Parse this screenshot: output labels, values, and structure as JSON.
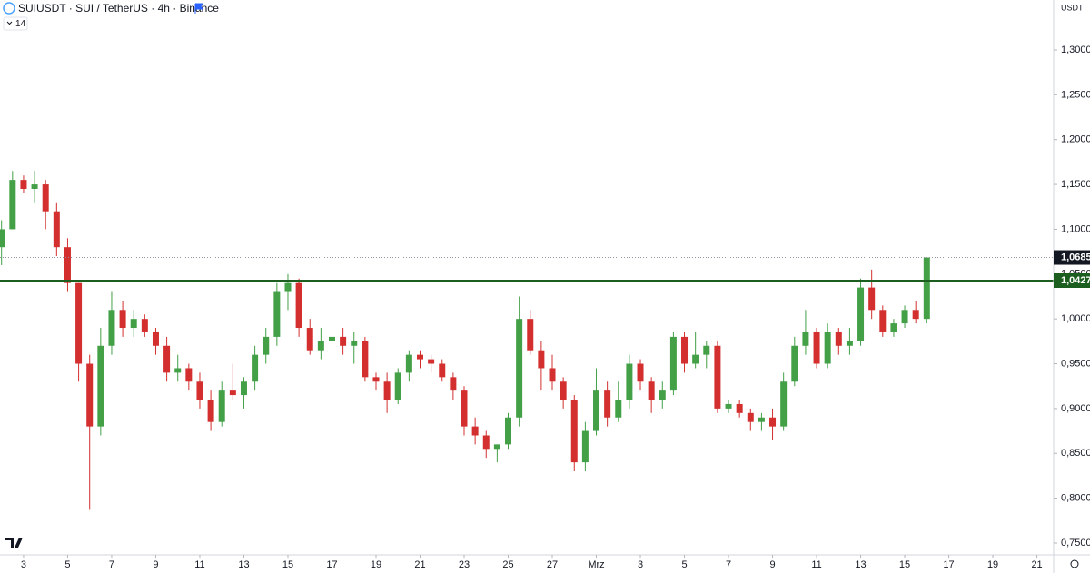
{
  "chart_data": {
    "type": "candlestick",
    "title": "SUIUSDT · SUI / TetherUS · 4h · Binance",
    "indicator": "14",
    "y_unit": "USDT",
    "up_color": "#43a047",
    "down_color": "#d32f2f",
    "x": [
      2,
      2.5,
      3,
      3.5,
      4,
      4.5,
      5,
      5.5,
      6,
      6.5,
      7,
      7.5,
      8,
      8.5,
      9,
      9.5,
      10,
      10.5,
      11,
      11.5,
      12,
      12.5,
      13,
      13.5,
      14,
      14.5,
      15,
      15.5,
      16,
      16.5,
      17,
      17.5,
      18,
      18.5,
      19,
      19.5,
      20,
      20.5,
      21,
      21.5,
      22,
      22.5,
      23,
      23.5,
      24,
      24.5,
      25,
      25.5,
      26,
      26.5,
      27,
      27.5,
      28,
      28.5,
      29,
      29.5,
      30,
      30.5,
      31,
      31.5,
      32,
      32.5,
      33,
      33.5,
      34,
      34.5,
      35,
      35.5,
      36,
      36.5,
      37,
      37.5,
      38,
      38.5,
      39,
      39.5,
      40,
      40.5,
      41,
      41.5,
      42,
      42.5,
      43,
      43.5,
      44
    ],
    "open": [
      1.08,
      1.1,
      1.155,
      1.145,
      1.15,
      1.12,
      1.08,
      1.04,
      0.95,
      0.88,
      0.97,
      1.01,
      0.99,
      1.0,
      0.985,
      0.97,
      0.94,
      0.945,
      0.93,
      0.91,
      0.885,
      0.92,
      0.915,
      0.93,
      0.96,
      0.98,
      1.03,
      1.04,
      0.99,
      0.965,
      0.975,
      0.98,
      0.97,
      0.975,
      0.935,
      0.93,
      0.91,
      0.94,
      0.96,
      0.955,
      0.95,
      0.935,
      0.92,
      0.88,
      0.87,
      0.855,
      0.86,
      0.89,
      1.0,
      0.965,
      0.945,
      0.93,
      0.91,
      0.84,
      0.875,
      0.92,
      0.89,
      0.91,
      0.95,
      0.93,
      0.91,
      0.92,
      0.98,
      0.95,
      0.96,
      0.97,
      0.9,
      0.905,
      0.895,
      0.885,
      0.89,
      0.88,
      0.93,
      0.97,
      0.985,
      0.95,
      0.985,
      0.97,
      0.975,
      1.035,
      1.01,
      0.985,
      0.995,
      1.01,
      1.0
    ],
    "high": [
      1.11,
      1.165,
      1.16,
      1.165,
      1.155,
      1.13,
      1.09,
      1.04,
      0.96,
      0.99,
      1.03,
      1.02,
      1.01,
      1.005,
      0.99,
      0.98,
      0.96,
      0.95,
      0.94,
      0.92,
      0.93,
      0.95,
      0.935,
      0.97,
      0.99,
      1.04,
      1.05,
      1.045,
      1.0,
      0.99,
      1.0,
      0.99,
      0.985,
      0.98,
      0.94,
      0.94,
      0.945,
      0.965,
      0.965,
      0.96,
      0.955,
      0.94,
      0.925,
      0.89,
      0.875,
      0.86,
      0.895,
      1.025,
      1.01,
      0.975,
      0.96,
      0.935,
      0.915,
      0.885,
      0.945,
      0.93,
      0.93,
      0.96,
      0.955,
      0.935,
      0.93,
      0.985,
      0.985,
      0.985,
      0.975,
      0.975,
      0.91,
      0.91,
      0.9,
      0.895,
      0.9,
      0.94,
      0.98,
      1.01,
      0.99,
      0.995,
      0.99,
      0.99,
      1.045,
      1.055,
      1.015,
      1.0,
      1.015,
      1.02,
      1.0685
    ],
    "low": [
      1.06,
      1.1,
      1.14,
      1.13,
      1.1,
      1.07,
      1.03,
      0.93,
      0.787,
      0.87,
      0.96,
      0.98,
      0.98,
      0.98,
      0.96,
      0.93,
      0.93,
      0.92,
      0.9,
      0.875,
      0.88,
      0.91,
      0.9,
      0.92,
      0.95,
      0.97,
      1.01,
      0.98,
      0.96,
      0.955,
      0.96,
      0.96,
      0.95,
      0.93,
      0.92,
      0.895,
      0.905,
      0.93,
      0.945,
      0.94,
      0.93,
      0.91,
      0.87,
      0.86,
      0.845,
      0.84,
      0.855,
      0.88,
      0.96,
      0.92,
      0.92,
      0.9,
      0.83,
      0.83,
      0.87,
      0.88,
      0.885,
      0.9,
      0.92,
      0.895,
      0.9,
      0.915,
      0.94,
      0.945,
      0.945,
      0.895,
      0.895,
      0.89,
      0.875,
      0.875,
      0.865,
      0.875,
      0.925,
      0.96,
      0.945,
      0.945,
      0.96,
      0.96,
      0.97,
      1.0,
      0.98,
      0.98,
      0.99,
      0.995,
      0.995
    ],
    "close": [
      1.1,
      1.155,
      1.145,
      1.15,
      1.12,
      1.08,
      1.04,
      0.95,
      0.88,
      0.97,
      1.01,
      0.99,
      1.0,
      0.985,
      0.97,
      0.94,
      0.945,
      0.93,
      0.91,
      0.885,
      0.92,
      0.915,
      0.93,
      0.96,
      0.98,
      1.03,
      1.04,
      0.99,
      0.965,
      0.975,
      0.98,
      0.97,
      0.975,
      0.935,
      0.93,
      0.91,
      0.94,
      0.96,
      0.955,
      0.95,
      0.935,
      0.92,
      0.88,
      0.87,
      0.855,
      0.86,
      0.89,
      1.0,
      0.965,
      0.945,
      0.93,
      0.91,
      0.84,
      0.875,
      0.92,
      0.89,
      0.91,
      0.95,
      0.93,
      0.91,
      0.92,
      0.98,
      0.95,
      0.96,
      0.97,
      0.9,
      0.905,
      0.895,
      0.885,
      0.89,
      0.88,
      0.93,
      0.97,
      0.985,
      0.95,
      0.985,
      0.97,
      0.975,
      1.035,
      1.01,
      0.985,
      0.995,
      1.01,
      1.0,
      1.0685
    ],
    "xlim": [
      1.93,
      49.76
    ],
    "xticks": [
      3,
      5,
      7,
      9,
      11,
      13,
      15,
      17,
      19,
      21,
      23,
      25,
      27,
      {
        "value": 29,
        "label": "Mrz"
      },
      {
        "value": 31,
        "label": "3"
      },
      {
        "value": 33,
        "label": "5"
      },
      {
        "value": 35,
        "label": "7"
      },
      {
        "value": 37,
        "label": "9"
      },
      {
        "value": 39,
        "label": "11"
      },
      {
        "value": 41,
        "label": "13"
      },
      {
        "value": 43,
        "label": "15"
      },
      {
        "value": 45,
        "label": "17"
      },
      {
        "value": 47,
        "label": "19"
      },
      {
        "value": 49,
        "label": "21"
      }
    ],
    "ylim": [
      0.7368,
      1.3557
    ],
    "yticks": [
      {
        "value": 0.75,
        "label": "0,7500"
      },
      {
        "value": 0.8,
        "label": "0,8000"
      },
      {
        "value": 0.85,
        "label": "0,8500"
      },
      {
        "value": 0.9,
        "label": "0,9000"
      },
      {
        "value": 0.95,
        "label": "0,9500"
      },
      {
        "value": 1.0,
        "label": "1,0000"
      },
      {
        "value": 1.05,
        "label": "1,0500"
      },
      {
        "value": 1.1,
        "label": "1,1000"
      },
      {
        "value": 1.15,
        "label": "1,1500"
      },
      {
        "value": 1.2,
        "label": "1,2000"
      },
      {
        "value": 1.25,
        "label": "1,2500"
      },
      {
        "value": 1.3,
        "label": "1,3000"
      }
    ],
    "grid": false,
    "last_price": {
      "value": 1.0685,
      "label": "1,0685",
      "color": "#131722"
    },
    "level": {
      "value": 1.0427,
      "label": "1,0427",
      "color": "#1b5e20"
    }
  }
}
